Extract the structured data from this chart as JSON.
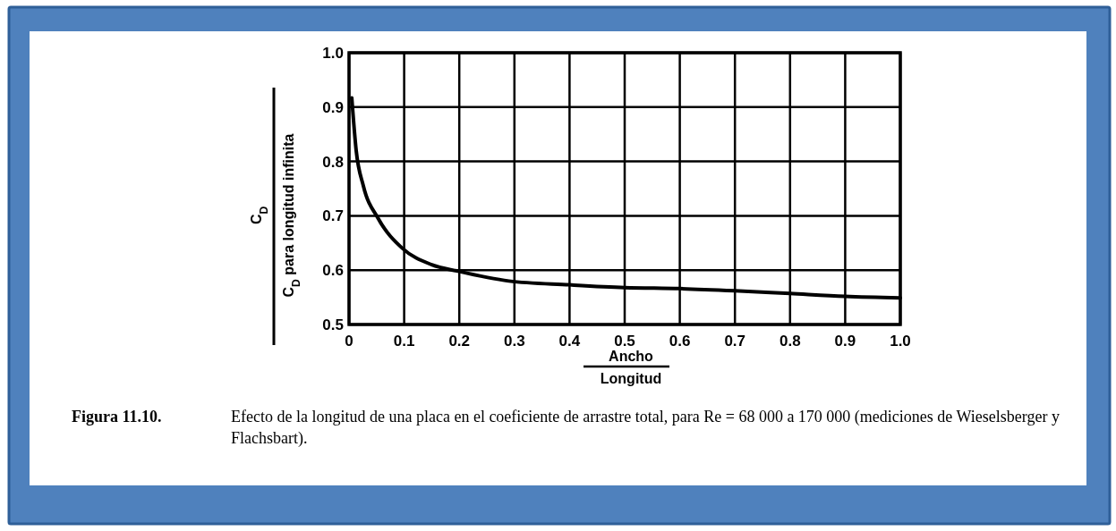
{
  "chart_data": {
    "type": "line",
    "xlabel": "Ancho Longitud",
    "ylabel": "C$_{D}$ C$_{D}$ para longitud infinita",
    "annotations": [
      "Figura 11.10.",
      "Efecto de la longitud de una placa en el coeficiente de arrastre total, para Re = 68 000 a 170 000 (mediciones de Wieselsberger y Flachsbart)."
    ],
    "series": [
      {
        "color": "#000000",
        "x": [
          0.005,
          0.013,
          0.026,
          0.053,
          0.097,
          0.15,
          0.198,
          0.29,
          0.4,
          0.5,
          0.6,
          0.7,
          0.8,
          0.9,
          1.0
        ],
        "values": [
          0.917,
          0.82,
          0.755,
          0.695,
          0.64,
          0.61,
          0.598,
          0.58,
          0.573,
          0.568,
          0.566,
          0.562,
          0.557,
          0.552,
          0.549
        ]
      }
    ],
    "xlim": [
      0,
      1
    ],
    "xticks": [
      0,
      0.1,
      0.2,
      0.3,
      0.4,
      0.5,
      0.6,
      0.7,
      0.8,
      0.9,
      {
        "value": 1,
        "label": "1.0"
      }
    ],
    "ylim": [
      0.5,
      1
    ],
    "yticks": [
      {
        "value": 0.5,
        "label": "0.5"
      },
      0.6,
      0.7,
      0.8,
      0.9,
      {
        "value": 1,
        "label": "1.0"
      }
    ],
    "grid": true,
    "marker": "none",
    "line_style": "solid"
  }
}
